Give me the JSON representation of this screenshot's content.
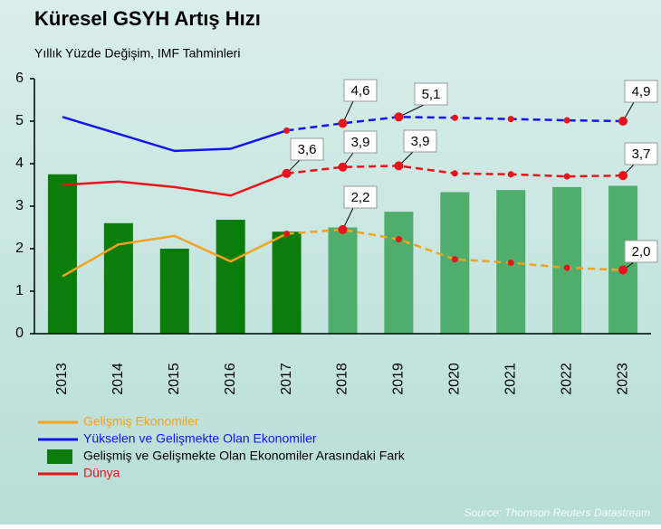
{
  "chart_data": {
    "type": "bar_line",
    "title": "Küresel GSYH Artış Hızı",
    "subtitle": "Yıllık Yüzde Değişim, IMF Tahminleri",
    "source": "Source: Thomson Reuters Datastream",
    "categories": [
      "2013",
      "2014",
      "2015",
      "2016",
      "2017",
      "2018",
      "2019",
      "2020",
      "2021",
      "2022",
      "2023"
    ],
    "ylim": [
      0,
      6
    ],
    "yticks": [
      0,
      1,
      2,
      3,
      4,
      5,
      6
    ],
    "bars": {
      "name": "Gelişmiş ve Gelişmekte Olan Ekonomiler Arasındaki Fark",
      "color": "#0a7d0a",
      "forecast_color": "#4fae6c",
      "values": [
        3.75,
        2.6,
        2.0,
        2.68,
        2.4,
        2.5,
        2.87,
        3.33,
        3.38,
        3.45,
        3.48
      ]
    },
    "series": [
      {
        "name": "Gelişmiş Ekonomiler",
        "color": "#f5a21d",
        "values": [
          1.35,
          2.1,
          2.3,
          1.7,
          2.35,
          2.45,
          2.22,
          1.75,
          1.67,
          1.55,
          1.5
        ]
      },
      {
        "name": "Yükselen ve Gelişmekte Olan Ekonomiler",
        "color": "#1414f0",
        "values": [
          5.1,
          4.7,
          4.3,
          4.35,
          4.78,
          4.95,
          5.1,
          5.08,
          5.05,
          5.02,
          5.0
        ]
      },
      {
        "name": "Dünya",
        "color": "#e8141a",
        "values": [
          3.5,
          3.58,
          3.45,
          3.25,
          3.77,
          3.92,
          3.95,
          3.77,
          3.75,
          3.7,
          3.72
        ]
      }
    ],
    "annotations": [
      "4,6",
      "5,1",
      "4,9",
      "3,6",
      "3,9",
      "3,9",
      "3,7",
      "2,2",
      "2,0"
    ]
  }
}
